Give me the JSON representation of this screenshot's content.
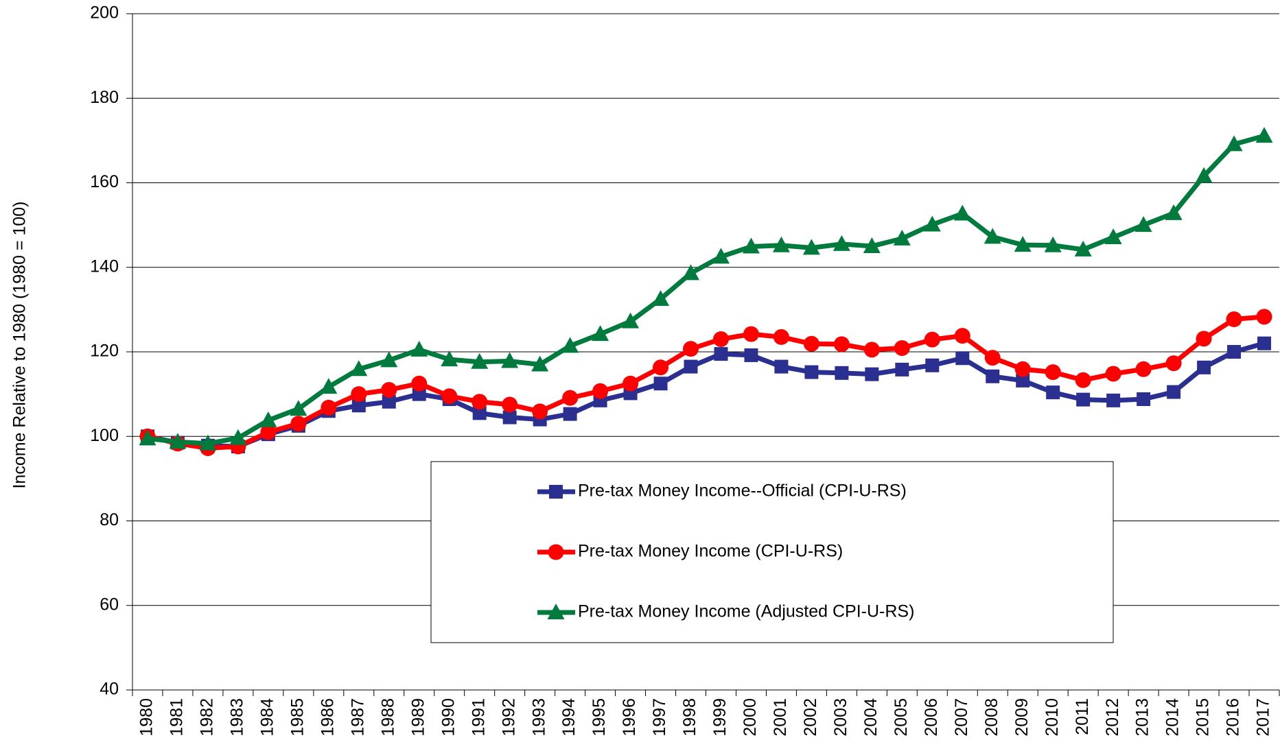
{
  "chart_data": {
    "type": "line",
    "y_label": "Income Relative to 1980 (1980 = 100)",
    "categories": [
      "1980",
      "1981",
      "1982",
      "1983",
      "1984",
      "1985",
      "1986",
      "1987",
      "1988",
      "1989",
      "1990",
      "1991",
      "1992",
      "1993",
      "1994",
      "1995",
      "1996",
      "1997",
      "1998",
      "1999",
      "2000",
      "2001",
      "2002",
      "2003",
      "2004",
      "2005",
      "2006",
      "2007",
      "2008",
      "2009",
      "2010",
      "2011",
      "2012",
      "2013",
      "2014",
      "2015",
      "2016",
      "2017"
    ],
    "series": [
      {
        "name": "Pre-tax Money Income--Official (CPI-U-RS)",
        "color": "#2b2f8f",
        "marker": "square",
        "values": [
          100,
          98.5,
          97.8,
          97.6,
          100.5,
          102.5,
          106,
          107.3,
          108.2,
          110,
          108.8,
          105.5,
          104.5,
          104,
          105.3,
          108.5,
          110.2,
          112.5,
          116.5,
          119.5,
          119.2,
          116.5,
          115.2,
          115,
          114.7,
          115.8,
          116.8,
          118.5,
          114.2,
          113.2,
          110.4,
          108.7,
          108.5,
          108.8,
          110.5,
          116.3,
          120,
          122
        ]
      },
      {
        "name": "Pre-tax Money Income (CPI-U-RS)",
        "color": "#ff0000",
        "marker": "circle",
        "values": [
          100,
          98.3,
          97.2,
          97.6,
          101,
          103,
          106.8,
          110,
          111,
          112.5,
          109.5,
          108.2,
          107.5,
          105.9,
          109.1,
          110.7,
          112.5,
          116.3,
          120.7,
          123,
          124.2,
          123.5,
          121.9,
          121.8,
          120.5,
          120.9,
          122.9,
          123.8,
          118.6,
          115.9,
          115.2,
          113.3,
          114.8,
          115.9,
          117.3,
          123.1,
          127.7,
          128.3
        ]
      },
      {
        "name": "Pre-tax Money Income (Adjusted CPI-U-RS)",
        "color": "#007a3d",
        "marker": "triangle",
        "values": [
          99.5,
          98.7,
          98.3,
          99.6,
          103.8,
          106.5,
          111.7,
          115.9,
          118,
          120.5,
          118.2,
          117.6,
          117.8,
          117,
          121.4,
          124.2,
          127.2,
          132.5,
          138.6,
          142.5,
          144.9,
          145.2,
          144.6,
          145.5,
          145,
          146.8,
          150.1,
          152.7,
          147.2,
          145.3,
          145.2,
          144.2,
          147.1,
          150,
          152.8,
          161.6,
          169.1,
          171.1
        ]
      }
    ],
    "ylim": [
      40,
      200
    ],
    "yticks": [
      40,
      60,
      80,
      100,
      120,
      140,
      160,
      180,
      200
    ],
    "grid": true,
    "legend": "lower center"
  }
}
